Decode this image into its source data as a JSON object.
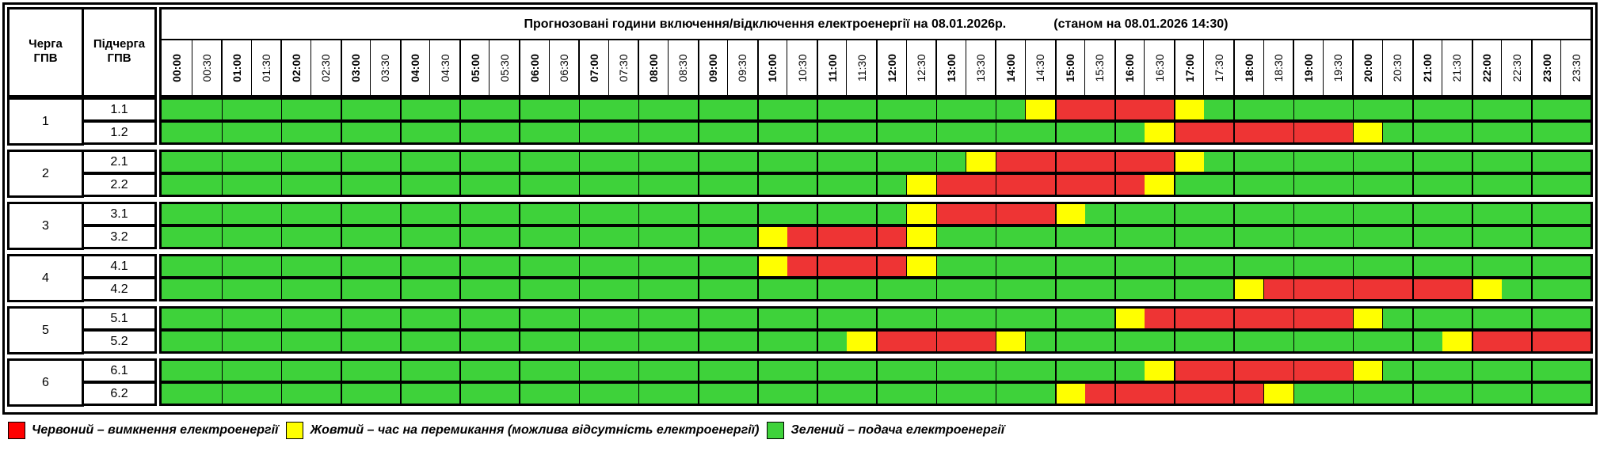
{
  "header": {
    "queue_label": "Черга\nГПВ",
    "subqueue_label": "Підчерга\nГПВ",
    "title": "Прогнозовані години включення/відключення електроенергії на 08.01.2026р.",
    "status": "(станом на 08.01.2026 14:30)"
  },
  "times": [
    "00:00",
    "00:30",
    "01:00",
    "01:30",
    "02:00",
    "02:30",
    "03:00",
    "03:30",
    "04:00",
    "04:30",
    "05:00",
    "05:30",
    "06:00",
    "06:30",
    "07:00",
    "07:30",
    "08:00",
    "08:30",
    "09:00",
    "09:30",
    "10:00",
    "10:30",
    "11:00",
    "11:30",
    "12:00",
    "12:30",
    "13:00",
    "13:30",
    "14:00",
    "14:30",
    "15:00",
    "15:30",
    "16:00",
    "16:30",
    "17:00",
    "17:30",
    "18:00",
    "18:30",
    "19:00",
    "19:30",
    "20:00",
    "20:30",
    "21:00",
    "21:30",
    "22:00",
    "22:30",
    "23:00",
    "23:30"
  ],
  "colors": {
    "G": "#3ed23a",
    "R": "#ee3434",
    "Y": "#ffff00"
  },
  "groups": [
    {
      "label": "1",
      "subgroups": [
        {
          "label": "1.1",
          "slots": "GGGGGGGGGGGGGGGGGGGGGGGGGGGGGYRRRRYGGGGGGGGGGGGG"
        },
        {
          "label": "1.2",
          "slots": "GGGGGGGGGGGGGGGGGGGGGGGGGGGGGGGGGYRRRRRRYGGGGGGG"
        }
      ]
    },
    {
      "label": "2",
      "subgroups": [
        {
          "label": "2.1",
          "slots": "GGGGGGGGGGGGGGGGGGGGGGGGGGGYRRRRRRYGGGGGGGGGGGGG"
        },
        {
          "label": "2.2",
          "slots": "GGGGGGGGGGGGGGGGGGGGGGGGGYRRRRRRRYGGGGGGGGGGGGGG"
        }
      ]
    },
    {
      "label": "3",
      "subgroups": [
        {
          "label": "3.1",
          "slots": "GGGGGGGGGGGGGGGGGGGGGGGGGYRRRRYGGGGGGGGGGGGGGGGG"
        },
        {
          "label": "3.2",
          "slots": "GGGGGGGGGGGGGGGGGGGGYRRRRYGGGGGGGGGGGGGGGGGGGGGG"
        }
      ]
    },
    {
      "label": "4",
      "subgroups": [
        {
          "label": "4.1",
          "slots": "GGGGGGGGGGGGGGGGGGGGYRRRRYGGGGGGGGGGGGGGGGGGGGGG"
        },
        {
          "label": "4.2",
          "slots": "GGGGGGGGGGGGGGGGGGGGGGGGGGGGGGGGGGGGYRRRRRRRYGGG"
        }
      ]
    },
    {
      "label": "5",
      "subgroups": [
        {
          "label": "5.1",
          "slots": "GGGGGGGGGGGGGGGGGGGGGGGGGGGGGGGGYRRRRRRRYGGGGGGG"
        },
        {
          "label": "5.2",
          "slots": "GGGGGGGGGGGGGGGGGGGGGGGYRRRRYGGGGGGGGGGGGGGYRRRR"
        }
      ]
    },
    {
      "label": "6",
      "subgroups": [
        {
          "label": "6.1",
          "slots": "GGGGGGGGGGGGGGGGGGGGGGGGGGGGGGGGGYRRRRRRYGGGGGGG"
        },
        {
          "label": "6.2",
          "slots": "GGGGGGGGGGGGGGGGGGGGGGGGGGGGGGYRRRRRRYGGGGGGGGGG"
        }
      ]
    }
  ],
  "legend": [
    {
      "key": "R",
      "text": "Червоний – вимкнення електроенергії"
    },
    {
      "key": "Y",
      "text": "Жовтий – час на перемикання (можлива відсутність електроенергії)"
    },
    {
      "key": "G",
      "text": "Зелений – подача електроенергії"
    }
  ]
}
